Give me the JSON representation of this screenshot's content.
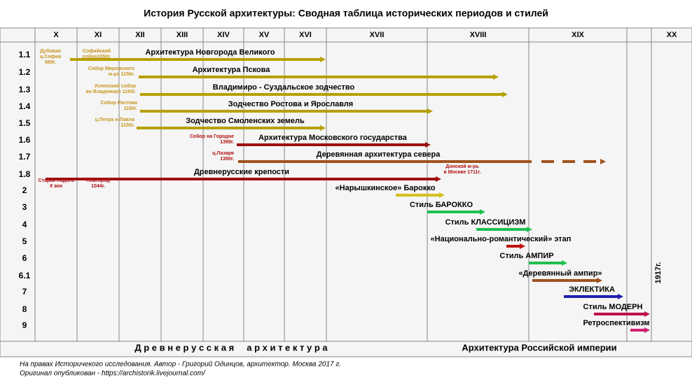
{
  "header": {
    "title": "История Русской архитектуры:  Сводная таблица исторических периодов и стилей"
  },
  "centuries": [
    "X",
    "XI",
    "XII",
    "XIII",
    "XIV",
    "XV",
    "XVI",
    "XVII",
    "XVIII",
    "XIX",
    "XX"
  ],
  "rows": [
    {
      "id": "1.1",
      "label": "Архитектура Новгорода Великого",
      "notes": [
        [
          "Дубовая",
          "ц.Софии",
          "989г."
        ],
        [
          "Софийский",
          "собор1050г."
        ]
      ]
    },
    {
      "id": "1.2",
      "label": "Архитектура Пскова",
      "notes": [
        [
          "Собор Мирожского",
          "м-ря 1156г."
        ]
      ]
    },
    {
      "id": "1.3",
      "label": "Владимиро - Суздальское зодчество",
      "notes": [
        [
          "Успенский собор",
          "во Владимире 1160г."
        ]
      ]
    },
    {
      "id": "1.4",
      "label": "Зодчество Ростова и Ярославля",
      "notes": [
        [
          "Собор Ростова",
          "1160г."
        ]
      ]
    },
    {
      "id": "1.5",
      "label": "Зодчество Смоленских земель",
      "notes": [
        [
          "ц.Петра и Павла",
          "1150г."
        ]
      ]
    },
    {
      "id": "1.6",
      "label": "Архитектура Московского государства",
      "notes": [
        [
          "Собор на Городне",
          "1399г."
        ]
      ]
    },
    {
      "id": "1.7",
      "label": "Деревянная архитектура севера",
      "notes": [
        [
          "ц.Лазаря",
          "1390г."
        ]
      ]
    },
    {
      "id": "1.8",
      "label": "Древнерусские крепости",
      "notes": [
        [
          "Старая Ладога",
          "X век"
        ],
        [
          "Новгород",
          "1044г."
        ],
        [
          "Донской м-рь",
          "в Москве 1711г."
        ]
      ]
    },
    {
      "id": "2",
      "label": "«Нарышкинское» Барокко",
      "notes": []
    },
    {
      "id": "3",
      "label": "Стиль БАРОККО",
      "notes": []
    },
    {
      "id": "4",
      "label": "Стиль КЛАССИЦИЗМ",
      "notes": []
    },
    {
      "id": "5",
      "label": "«Национально-романтический» этап",
      "notes": []
    },
    {
      "id": "6",
      "label": "Стиль АМПИР",
      "notes": []
    },
    {
      "id": "6.1",
      "label": "«Деревянный ампир»",
      "notes": []
    },
    {
      "id": "7",
      "label": "ЭКЛЕКТИКА",
      "notes": []
    },
    {
      "id": "8",
      "label": "Стиль МОДЕРН",
      "notes": []
    },
    {
      "id": "9",
      "label": "Ретроспективизм",
      "notes": []
    }
  ],
  "marker_1917": "1917г.",
  "bottom": [
    "Д р е в н е р у с с к а я     а р х и т е к т у р а",
    "Архитектура Российской империи"
  ],
  "footer": [
    "На правах Историчекого исследования. Автор - Григорий Одинцов, архитектор. Москва 2017 г.",
    "Оригинал опубликован - https://archistorik.livejournal.com/"
  ]
}
